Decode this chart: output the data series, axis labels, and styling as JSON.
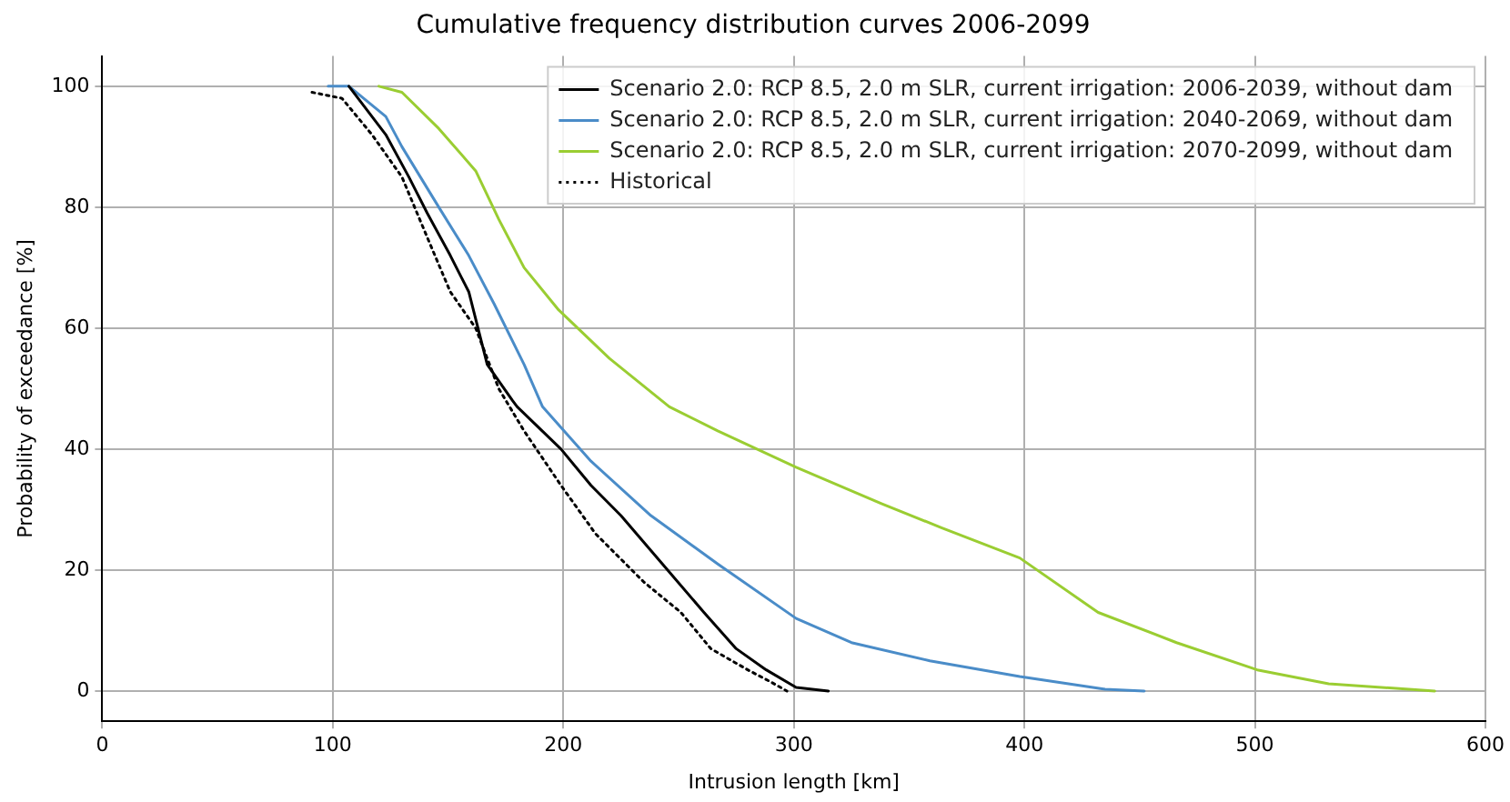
{
  "chart_data": {
    "type": "line",
    "title": "Cumulative frequency distribution curves 2006-2099",
    "xlabel": "Intrusion length [km]",
    "ylabel": "Probability of exceedance [%]",
    "xlim": [
      0,
      600
    ],
    "xticks": [
      0,
      100,
      200,
      300,
      400,
      500,
      600
    ],
    "ylim": [
      -5,
      105
    ],
    "yticks": [
      0,
      20,
      40,
      60,
      80,
      100
    ],
    "grid": true,
    "legend": "top right",
    "marker": "none",
    "series": [
      {
        "name": "Scenario 2.0: RCP 8.5, 2.0 m SLR, current irrigation: 2006-2039, without dam",
        "color": "#000000",
        "line_style": "solid",
        "x": [
          107,
          123,
          133,
          141,
          151,
          159,
          163,
          167,
          178,
          180,
          199,
          212,
          225,
          243,
          261,
          275,
          288,
          301,
          315
        ],
        "values": [
          100,
          92,
          85,
          79,
          72,
          66,
          60,
          54,
          48,
          47,
          40,
          34,
          29,
          21,
          13,
          7,
          3.5,
          0.6,
          0
        ]
      },
      {
        "name": "Scenario 2.0: RCP 8.5, 2.0 m SLR, current irrigation: 2040-2069, without dam",
        "color": "#4a8cc8",
        "line_style": "solid",
        "x": [
          98,
          107,
          123,
          130,
          146,
          159,
          170,
          183,
          191,
          212,
          238,
          267,
          301,
          325,
          359,
          398,
          435,
          452
        ],
        "values": [
          100,
          100,
          95,
          90,
          80,
          72,
          64,
          54,
          47,
          38,
          29,
          21,
          12,
          8,
          5,
          2.4,
          0.3,
          0
        ]
      },
      {
        "name": "Scenario 2.0: RCP 8.5, 2.0 m SLR, current irrigation: 2070-2099, without dam",
        "color": "#9acd32",
        "line_style": "solid",
        "x": [
          120,
          130,
          146,
          162,
          172,
          183,
          198,
          220,
          246,
          267,
          301,
          338,
          364,
          398,
          432,
          466,
          501,
          532,
          578
        ],
        "values": [
          100,
          99,
          93,
          86,
          78,
          70,
          63,
          55,
          47,
          43,
          37,
          31,
          27,
          22,
          13,
          8,
          3.5,
          1.2,
          0
        ]
      },
      {
        "name": "Historical",
        "color": "#000000",
        "line_style": "dotted",
        "x": [
          91,
          104,
          117,
          130,
          141,
          151,
          162,
          172,
          183,
          199,
          214,
          235,
          251,
          264,
          280,
          290,
          297
        ],
        "values": [
          99,
          98,
          92,
          85,
          75,
          66,
          60,
          50,
          43,
          34,
          26,
          18,
          13,
          7,
          3.5,
          1.5,
          0
        ]
      }
    ]
  }
}
